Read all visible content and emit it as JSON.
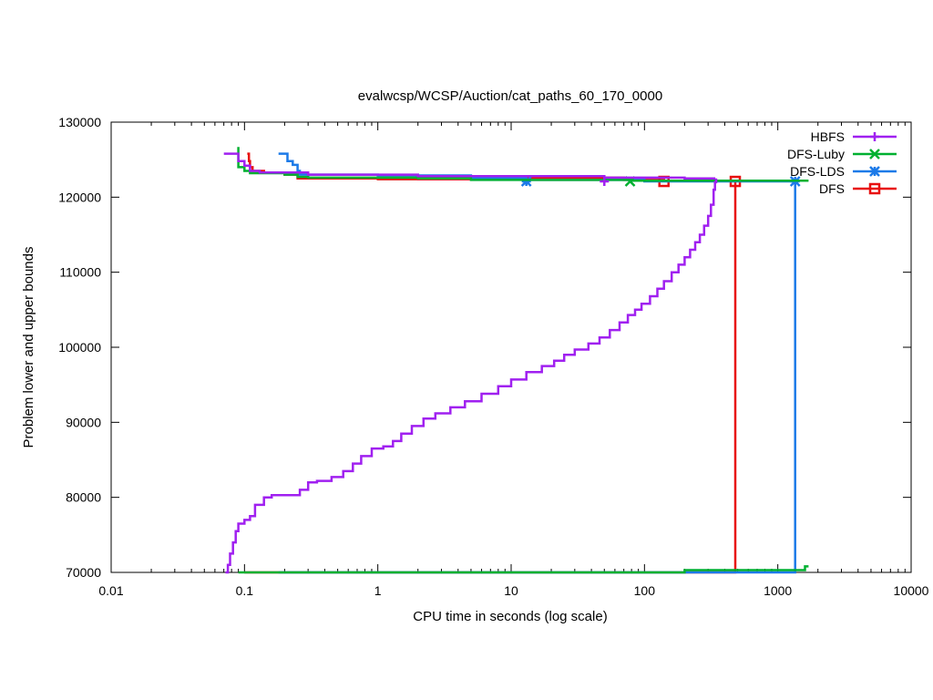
{
  "chart_data": {
    "type": "line",
    "title": "evalwcsp/WCSP/Auction/cat_paths_60_170_0000",
    "xlabel": "CPU time in seconds (log scale)",
    "ylabel": "Problem lower and upper bounds",
    "xscale": "log",
    "xlim": [
      0.01,
      10000
    ],
    "ylim": [
      70000,
      130000
    ],
    "x_ticks": [
      0.01,
      0.1,
      1,
      10,
      100,
      1000,
      10000
    ],
    "x_tick_labels": [
      "0.01",
      "0.1",
      "1",
      "10",
      "100",
      "1000",
      "10000"
    ],
    "y_ticks": [
      70000,
      80000,
      90000,
      100000,
      110000,
      120000,
      130000
    ],
    "y_tick_labels": [
      "70000",
      "80000",
      "90000",
      "100000",
      "110000",
      "120000",
      "130000"
    ],
    "grid": false,
    "legend_position": "top-right",
    "series": [
      {
        "name": "HBFS",
        "color": "#a020f0",
        "marker": "plus",
        "lower": [
          [
            0.072,
            70000
          ],
          [
            0.075,
            71000
          ],
          [
            0.078,
            72500
          ],
          [
            0.082,
            74000
          ],
          [
            0.086,
            75500
          ],
          [
            0.09,
            76500
          ],
          [
            0.1,
            77000
          ],
          [
            0.11,
            77500
          ],
          [
            0.12,
            79000
          ],
          [
            0.14,
            80000
          ],
          [
            0.16,
            80300
          ],
          [
            0.2,
            80300
          ],
          [
            0.26,
            81000
          ],
          [
            0.3,
            82000
          ],
          [
            0.35,
            82200
          ],
          [
            0.45,
            82700
          ],
          [
            0.55,
            83500
          ],
          [
            0.65,
            84500
          ],
          [
            0.75,
            85500
          ],
          [
            0.9,
            86500
          ],
          [
            1.1,
            86800
          ],
          [
            1.3,
            87500
          ],
          [
            1.5,
            88500
          ],
          [
            1.8,
            89500
          ],
          [
            2.2,
            90500
          ],
          [
            2.7,
            91200
          ],
          [
            3.5,
            92000
          ],
          [
            4.5,
            92800
          ],
          [
            6,
            93800
          ],
          [
            8,
            94800
          ],
          [
            10,
            95700
          ],
          [
            13,
            96700
          ],
          [
            17,
            97500
          ],
          [
            21,
            98200
          ],
          [
            25,
            99000
          ],
          [
            30,
            99700
          ],
          [
            38,
            100500
          ],
          [
            46,
            101300
          ],
          [
            55,
            102300
          ],
          [
            65,
            103300
          ],
          [
            75,
            104300
          ],
          [
            85,
            105000
          ],
          [
            95,
            105800
          ],
          [
            110,
            106800
          ],
          [
            125,
            107800
          ],
          [
            140,
            108800
          ],
          [
            160,
            110000
          ],
          [
            180,
            111000
          ],
          [
            200,
            112000
          ],
          [
            220,
            113000
          ],
          [
            240,
            114000
          ],
          [
            260,
            115000
          ],
          [
            280,
            116200
          ],
          [
            300,
            117500
          ],
          [
            315,
            119000
          ],
          [
            330,
            121000
          ],
          [
            338,
            122000
          ],
          [
            345,
            122500
          ]
        ],
        "upper": [
          [
            0.07,
            125800
          ],
          [
            0.085,
            125800
          ],
          [
            0.09,
            124800
          ],
          [
            0.1,
            124200
          ],
          [
            0.11,
            123500
          ],
          [
            0.13,
            123300
          ],
          [
            0.3,
            123000
          ],
          [
            2,
            122800
          ],
          [
            50,
            122600
          ],
          [
            200,
            122500
          ],
          [
            340,
            122500
          ]
        ],
        "markers": [
          [
            50,
            122100
          ]
        ]
      },
      {
        "name": "DFS-Luby",
        "color": "#00b030",
        "marker": "x",
        "lower": [
          [
            0.09,
            70000
          ],
          [
            200,
            70000
          ],
          [
            200,
            70300
          ],
          [
            1600,
            70300
          ],
          [
            1600,
            70800
          ],
          [
            1700,
            70800
          ]
        ],
        "upper": [
          [
            0.09,
            126700
          ],
          [
            0.09,
            124000
          ],
          [
            0.1,
            123500
          ],
          [
            0.11,
            123200
          ],
          [
            0.2,
            123000
          ],
          [
            0.25,
            122700
          ],
          [
            0.3,
            122600
          ],
          [
            2,
            122500
          ],
          [
            5,
            122300
          ],
          [
            78,
            122200
          ],
          [
            1700,
            122200
          ]
        ],
        "markers": [
          [
            78,
            122100
          ]
        ]
      },
      {
        "name": "DFS-LDS",
        "color": "#1c7ae8",
        "marker": "star",
        "lower": [
          [
            0.18,
            70000
          ],
          [
            1350,
            70000
          ],
          [
            1350,
            122000
          ]
        ],
        "upper": [
          [
            0.18,
            125800
          ],
          [
            0.2,
            125800
          ],
          [
            0.21,
            124800
          ],
          [
            0.23,
            124300
          ],
          [
            0.25,
            123500
          ],
          [
            0.26,
            123000
          ],
          [
            1,
            122900
          ],
          [
            5,
            122500
          ],
          [
            13,
            122300
          ],
          [
            100,
            122100
          ],
          [
            1350,
            122100
          ]
        ],
        "markers": [
          [
            13,
            122100
          ],
          [
            1350,
            122100
          ]
        ]
      },
      {
        "name": "DFS",
        "color": "#e81010",
        "marker": "box",
        "lower": [
          [
            0.1,
            70000
          ],
          [
            480,
            70000
          ],
          [
            480,
            122100
          ]
        ],
        "upper": [
          [
            0.105,
            125800
          ],
          [
            0.108,
            124800
          ],
          [
            0.11,
            124000
          ],
          [
            0.115,
            123500
          ],
          [
            0.14,
            123300
          ],
          [
            0.2,
            123000
          ],
          [
            0.25,
            122500
          ],
          [
            1,
            122400
          ],
          [
            10,
            122600
          ],
          [
            50,
            122600
          ],
          [
            70,
            122300
          ],
          [
            140,
            122200
          ],
          [
            480,
            122200
          ]
        ],
        "markers": [
          [
            140,
            122100
          ],
          [
            480,
            122100
          ]
        ]
      }
    ]
  }
}
